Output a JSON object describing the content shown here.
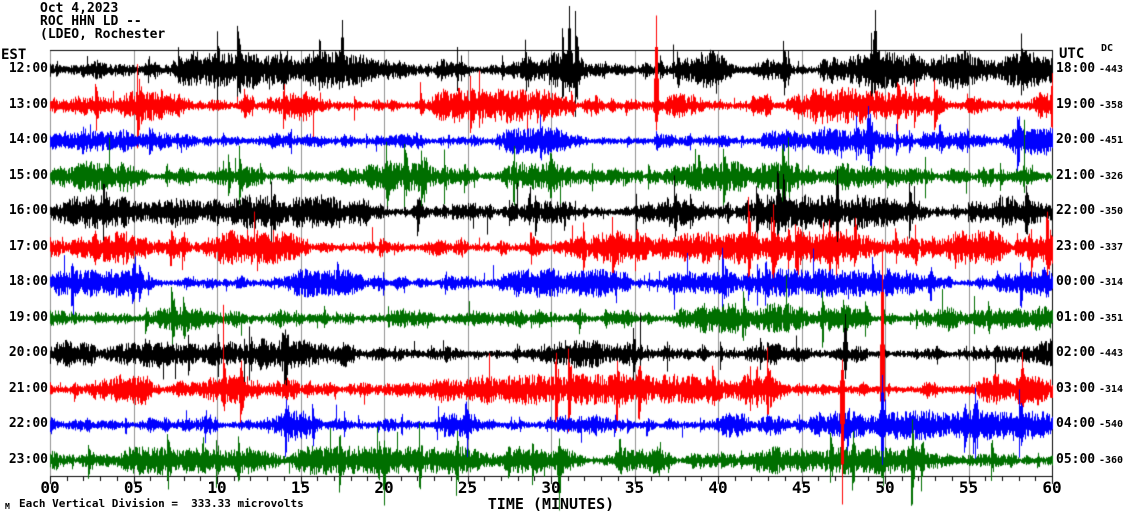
{
  "header": {
    "date": "Oct 4,2023",
    "station_line": "ROC HHN LD --",
    "affiliation_line": "(LDEO, Rochester",
    "left_timezone_label": "EST",
    "right_timezone_label": "UTC",
    "dc_column_label": "DC"
  },
  "x_axis": {
    "title": "TIME (MINUTES)",
    "tick_labels": [
      "00",
      "05",
      "10",
      "15",
      "20",
      "25",
      "30",
      "35",
      "40",
      "45",
      "50",
      "55",
      "60"
    ],
    "tick_minutes": [
      0,
      5,
      10,
      15,
      20,
      25,
      30,
      35,
      40,
      45,
      50,
      55,
      60
    ]
  },
  "footer": {
    "scale_note": "Each Vertical Division =  333.33 microvolts",
    "watermark": "M"
  },
  "chart_data": {
    "type": "line",
    "subtype": "seismogram-helicorder",
    "title": "ROC HHN LD -- (LDEO, Rochester) Oct 4,2023",
    "xlabel": "TIME (MINUTES)",
    "x_range_minutes": [
      0,
      60
    ],
    "minutes_per_row": 60,
    "vertical_division_microvolts": 333.33,
    "grid": {
      "vertical_gridline_every_min": 5,
      "gridline_color": "#909090",
      "frame_color": "#000000"
    },
    "palette": {
      "black": "#000000",
      "red": "#ff0000",
      "blue": "#0000ff",
      "green": "#006f00"
    },
    "rows": [
      {
        "est": "12:00",
        "utc": "18:00",
        "dc": "-443",
        "color": "#000000",
        "amp": 20,
        "seed": 101
      },
      {
        "est": "13:00",
        "utc": "19:00",
        "dc": "-358",
        "color": "#ff0000",
        "amp": 19,
        "seed": 202
      },
      {
        "est": "14:00",
        "utc": "20:00",
        "dc": "-451",
        "color": "#0000ff",
        "amp": 15,
        "seed": 303
      },
      {
        "est": "15:00",
        "utc": "21:00",
        "dc": "-326",
        "color": "#006f00",
        "amp": 16,
        "seed": 404
      },
      {
        "est": "16:00",
        "utc": "22:00",
        "dc": "-350",
        "color": "#000000",
        "amp": 18,
        "seed": 505
      },
      {
        "est": "17:00",
        "utc": "23:00",
        "dc": "-337",
        "color": "#ff0000",
        "amp": 18,
        "seed": 606
      },
      {
        "est": "18:00",
        "utc": "00:00",
        "dc": "-314",
        "color": "#0000ff",
        "amp": 15,
        "seed": 707
      },
      {
        "est": "19:00",
        "utc": "01:00",
        "dc": "-351",
        "color": "#006f00",
        "amp": 16,
        "seed": 808
      },
      {
        "est": "20:00",
        "utc": "02:00",
        "dc": "-443",
        "color": "#000000",
        "amp": 17,
        "seed": 909
      },
      {
        "est": "21:00",
        "utc": "03:00",
        "dc": "-314",
        "color": "#ff0000",
        "amp": 16,
        "seed": 1010
      },
      {
        "est": "22:00",
        "utc": "04:00",
        "dc": "-540",
        "color": "#0000ff",
        "amp": 16,
        "seed": 1111
      },
      {
        "est": "23:00",
        "utc": "05:00",
        "dc": "-360",
        "color": "#006f00",
        "amp": 15,
        "seed": 1212
      }
    ],
    "events": [
      {
        "row": 0,
        "min": 17.5,
        "up": 50,
        "down": 18
      },
      {
        "row": 0,
        "min": 31.1,
        "up": 64,
        "down": 22
      },
      {
        "row": 0,
        "min": 49.4,
        "up": 60,
        "down": 20
      },
      {
        "row": 1,
        "min": 36.3,
        "up": 90,
        "down": 25
      },
      {
        "row": 2,
        "min": 49.0,
        "up": 35,
        "down": 20
      },
      {
        "row": 4,
        "min": 47.1,
        "up": 42,
        "down": 30
      },
      {
        "row": 8,
        "min": 47.6,
        "up": 40,
        "down": 25
      },
      {
        "row": 9,
        "min": 47.4,
        "up": 30,
        "down": 115
      },
      {
        "row": 9,
        "min": 49.8,
        "up": 150,
        "down": 40
      },
      {
        "row": 10,
        "min": 49.85,
        "up": 50,
        "down": 40
      },
      {
        "row": 11,
        "min": 20.0,
        "up": 20,
        "down": 45
      },
      {
        "row": 11,
        "min": 30.5,
        "up": 22,
        "down": 50
      }
    ]
  }
}
